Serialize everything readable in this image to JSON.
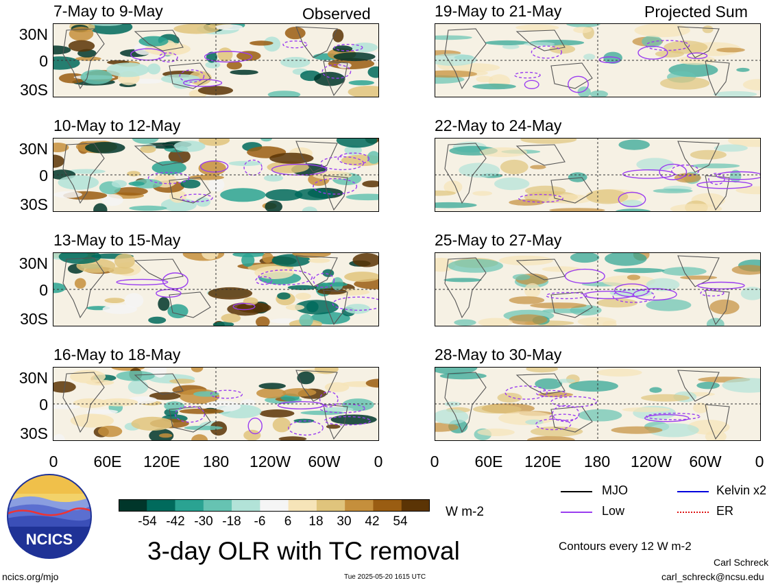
{
  "tags": {
    "observed": "Observed",
    "projected": "Projected Sum"
  },
  "panels": [
    {
      "title": "7-May to 9-May",
      "column": "observed"
    },
    {
      "title": "10-May to 12-May",
      "column": "observed"
    },
    {
      "title": "13-May to 15-May",
      "column": "observed"
    },
    {
      "title": "16-May to 18-May",
      "column": "observed"
    },
    {
      "title": "19-May to 21-May",
      "column": "projected"
    },
    {
      "title": "22-May to 24-May",
      "column": "projected"
    },
    {
      "title": "25-May to 27-May",
      "column": "projected"
    },
    {
      "title": "28-May to 30-May",
      "column": "projected"
    }
  ],
  "lat_labels": [
    "30N",
    "0",
    "30S"
  ],
  "lon_labels": [
    "0",
    "60E",
    "120E",
    "180",
    "120W",
    "60W",
    "0"
  ],
  "colorbar": {
    "labels": [
      "-54",
      "-42",
      "-30",
      "-18",
      "-6",
      "6",
      "18",
      "30",
      "42",
      "54"
    ],
    "colors": [
      "#00362a",
      "#006a5c",
      "#2aa392",
      "#66c3b2",
      "#b2e3d8",
      "#f5f5f5",
      "#f6e4b8",
      "#e0c47c",
      "#c58f3c",
      "#9a5d12",
      "#5b3405"
    ],
    "units": "W m-2"
  },
  "main_title": "3-day OLR with TC removal",
  "legend": {
    "items": [
      {
        "label": "MJO",
        "color": "#000000"
      },
      {
        "label": "Kelvin x2",
        "color": "#0000dd"
      },
      {
        "label": "Low",
        "color": "#9a3cf0"
      },
      {
        "label": "ER",
        "color": "#dd1010"
      }
    ],
    "contours": "Contours every 12 W m-2"
  },
  "logo_text": "NCICS",
  "author": "Carl Schreck",
  "email": "carl_schreck@ncsu.edu",
  "site": "ncics.org/mjo",
  "timestamp": "Tue 2025-05-20 1615 UTC"
}
